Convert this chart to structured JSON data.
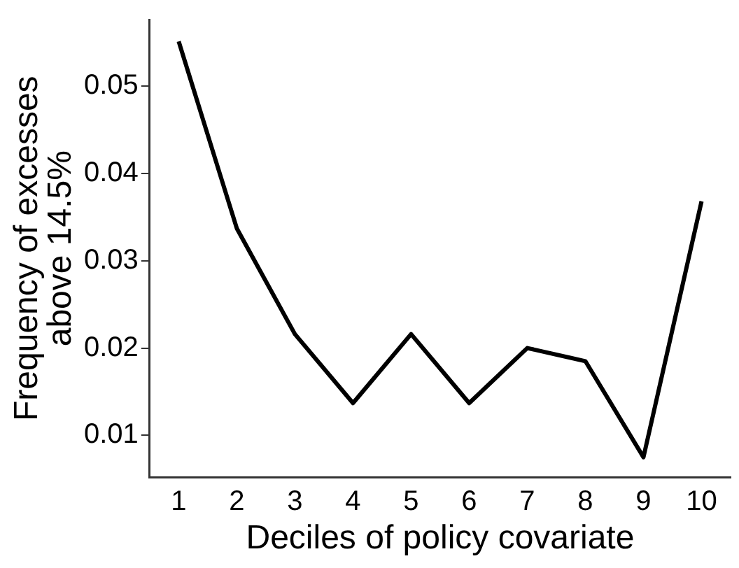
{
  "chart_data": {
    "type": "line",
    "xlabel": "Deciles of policy covariate",
    "ylabel": "Frequency of excesses\nabove 14.5%",
    "categories": [
      "1",
      "2",
      "3",
      "4",
      "5",
      "6",
      "7",
      "8",
      "9",
      "10"
    ],
    "series": [
      {
        "color": "#000000",
        "values": [
          0.0551,
          0.0337,
          0.0216,
          0.0137,
          0.0216,
          0.0137,
          0.02,
          0.0185,
          0.0075,
          0.0368
        ]
      }
    ],
    "ylim": [
      0.0052,
      0.0576
    ],
    "yticks": [
      0.01,
      0.02,
      0.03,
      0.04,
      0.05
    ],
    "grid": false,
    "legend": false,
    "marker": "none",
    "line_style": "solid"
  }
}
